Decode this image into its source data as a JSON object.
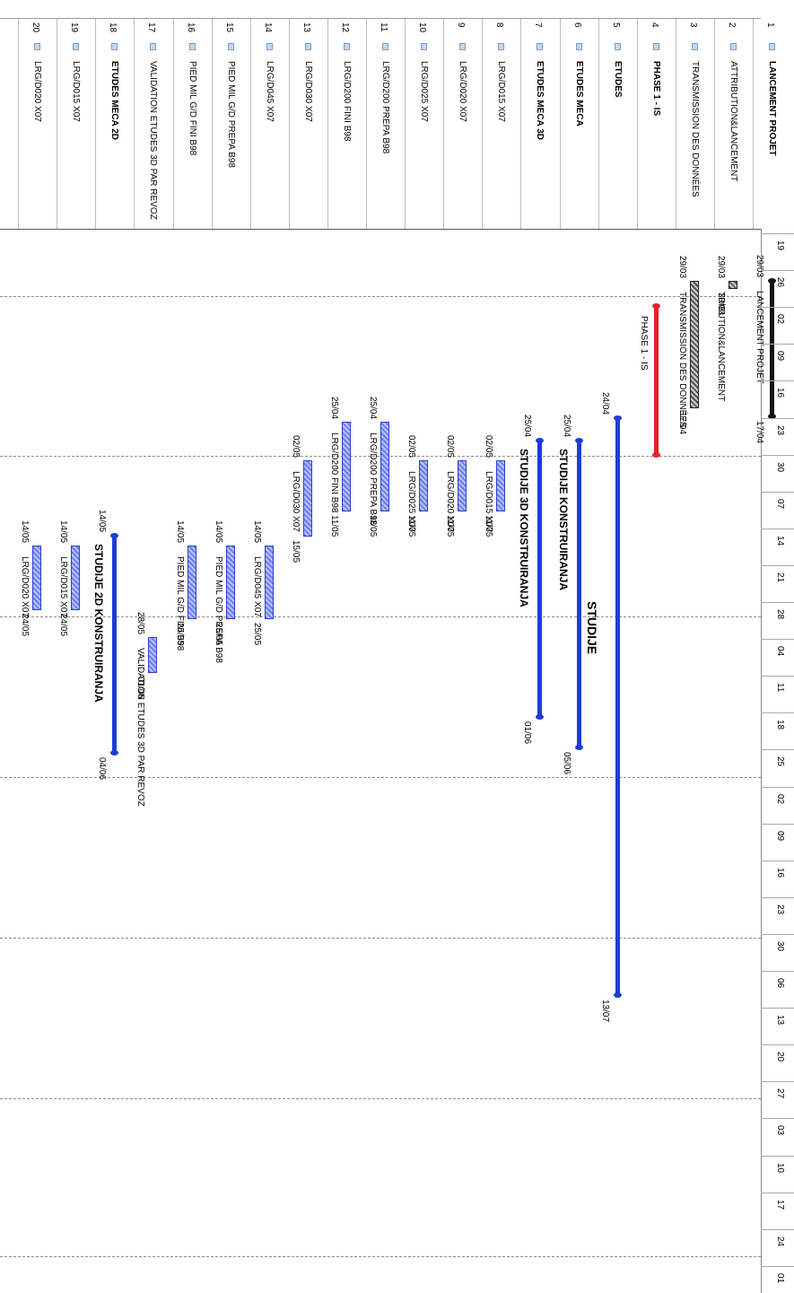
{
  "header": {
    "rows": [
      {
        "id": "1",
        "name": "LANCEMENT PROJET",
        "bold": true
      },
      {
        "id": "2",
        "name": "ATTRIBUTION&LANCEMENT",
        "bold": false
      },
      {
        "id": "3",
        "name": "TRANSMISSION DES DONNÉES",
        "bold": false
      },
      {
        "id": "4",
        "name": "PHASE 1 - IS",
        "bold": true
      },
      {
        "id": "5",
        "name": "ETUDES",
        "bold": true
      },
      {
        "id": "6",
        "name": "ETUDES MECA",
        "bold": true
      },
      {
        "id": "7",
        "name": "ETUDES MECA 3D",
        "bold": true
      },
      {
        "id": "8",
        "name": "LRG/D015 X07",
        "bold": false
      },
      {
        "id": "9",
        "name": "LRG/D020 X07",
        "bold": false
      },
      {
        "id": "10",
        "name": "LRG/D025 X07",
        "bold": false
      },
      {
        "id": "11",
        "name": "LRG/D200 PREPA B98",
        "bold": false
      },
      {
        "id": "12",
        "name": "LRG/D200 FINI B98",
        "bold": false
      },
      {
        "id": "13",
        "name": "LRG/D030 X07",
        "bold": false
      },
      {
        "id": "14",
        "name": "LRG/D045 X07",
        "bold": false
      },
      {
        "id": "15",
        "name": "PIED MIL G/D PREPA B98",
        "bold": false
      },
      {
        "id": "16",
        "name": "PIED MIL G/D FINI  B98",
        "bold": false
      },
      {
        "id": "17",
        "name": "VALIDATION ETUDES 3D PAR REVOZ",
        "bold": false
      },
      {
        "id": "18",
        "name": "ETUDES MECA 2D",
        "bold": true
      },
      {
        "id": "19",
        "name": "LRG/D015 X07",
        "bold": false
      },
      {
        "id": "20",
        "name": "LRG/D020 X07",
        "bold": false
      }
    ]
  },
  "timescale": {
    "weeks": [
      "19",
      "26",
      "02",
      "09",
      "16",
      "23",
      "30",
      "07",
      "14",
      "21",
      "28",
      "04",
      "11",
      "18",
      "25",
      "02",
      "09",
      "16",
      "23",
      "30",
      "06",
      "13",
      "20",
      "27",
      "03",
      "10",
      "17",
      "24",
      "01"
    ]
  },
  "gantt": {
    "tasks": [
      {
        "row": 1,
        "label": "LANCEMENT PROJET",
        "start_label": "29/03",
        "end_label": "17/04",
        "kind": "summary-black"
      },
      {
        "row": 2,
        "label": "TRIBUTION&LANCEMENT",
        "start_label": "29/03",
        "end_label": "30/03",
        "kind": "bar-gray"
      },
      {
        "row": 3,
        "label": "TRANSMISSION DES DONNÉES",
        "start_label": "29/03",
        "end_label": "17/04",
        "kind": "bar-gray"
      },
      {
        "row": 4,
        "label": "PHASE 1 - IS",
        "start_label": "",
        "end_label": "",
        "kind": "summary-red"
      },
      {
        "row": 5,
        "label": "STUDIJE",
        "start_label": "24/04",
        "end_label": "13/07",
        "kind": "summary-blue"
      },
      {
        "row": 6,
        "label": "STUDIJE KONSTRUIRANJA",
        "start_label": "25/04",
        "end_label": "05/06",
        "kind": "summary-blue"
      },
      {
        "row": 7,
        "label": "STUDIJE 3D KONSTRUIRANJA",
        "start_label": "25/04",
        "end_label": "01/06",
        "kind": "summary-blue"
      },
      {
        "row": 8,
        "label": "LRG/D015 X07",
        "start_label": "02/05",
        "end_label": "11/05",
        "kind": "bar-blue"
      },
      {
        "row": 9,
        "label": "LRG/D020 X07",
        "start_label": "02/05",
        "end_label": "11/05",
        "kind": "bar-blue"
      },
      {
        "row": 10,
        "label": "LRG/D025 X07",
        "start_label": "02/05",
        "end_label": "11/05",
        "kind": "bar-blue"
      },
      {
        "row": 11,
        "label": "LRG/D200 PREPA B98",
        "start_label": "25/04",
        "end_label": "11/05",
        "kind": "bar-blue"
      },
      {
        "row": 12,
        "label": "LRG/D200 FINI B98",
        "start_label": "25/04",
        "end_label": "11/05",
        "kind": "bar-blue"
      },
      {
        "row": 13,
        "label": "LRG/D030 X07",
        "start_label": "02/05",
        "end_label": "15/05",
        "kind": "bar-blue"
      },
      {
        "row": 14,
        "label": "LRG/D045 X07",
        "start_label": "14/05",
        "end_label": "25/05",
        "kind": "bar-blue"
      },
      {
        "row": 15,
        "label": "PIED MIL G/D PREPA B98",
        "start_label": "14/05",
        "end_label": "25/05",
        "kind": "bar-blue"
      },
      {
        "row": 16,
        "label": "PIED MIL G/D FINI  B98",
        "start_label": "14/05",
        "end_label": "25/05",
        "kind": "bar-blue"
      },
      {
        "row": 17,
        "label": "VALIDATION ETUDES 3D PAR REVOZ",
        "start_label": "28/05",
        "end_label": "01/06",
        "kind": "bar-blue"
      },
      {
        "row": 18,
        "label": "STUDIJE 2D KONSTRUIRANJA",
        "start_label": "14/05",
        "end_label": "04/06",
        "kind": "summary-blue"
      },
      {
        "row": 19,
        "label": "LRG/D015 X07",
        "start_label": "14/05",
        "end_label": "24/05",
        "kind": "bar-blue"
      },
      {
        "row": 20,
        "label": "LRG/D020 X07",
        "start_label": "14/05",
        "end_label": "24/05",
        "kind": "bar-blue"
      }
    ]
  },
  "colors": {
    "summary_blue": "#1c3cd8",
    "summary_red": "#e8202a",
    "summary_black": "#111111",
    "bar_blue": "#6a7cf5",
    "bar_gray": "#555555"
  }
}
